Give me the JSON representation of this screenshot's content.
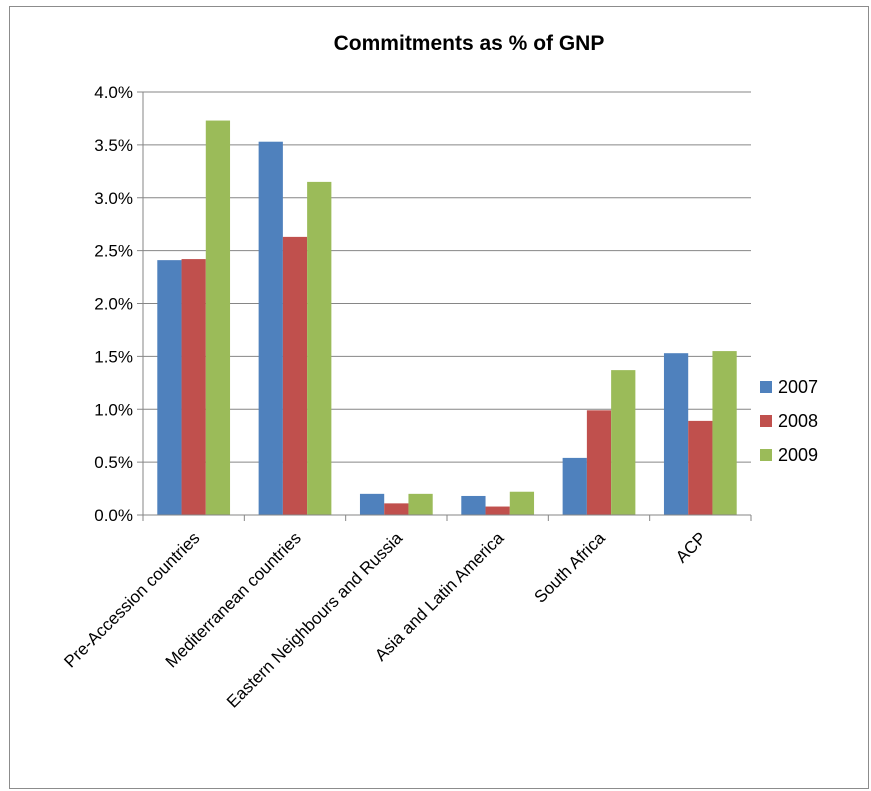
{
  "chart_data": {
    "type": "bar",
    "title": "Commitments as % of GNP",
    "xlabel": "",
    "ylabel": "",
    "categories": [
      "Pre-Accession countries",
      "Mediterranean countries",
      "Eastern Neighbours and Russia",
      "Asia and Latin America",
      "South Africa",
      "ACP"
    ],
    "series": [
      {
        "name": "2007",
        "color": "#4f81bd",
        "values": [
          2.41,
          3.53,
          0.2,
          0.18,
          0.54,
          1.53
        ]
      },
      {
        "name": "2008",
        "color": "#c0504d",
        "values": [
          2.42,
          2.63,
          0.11,
          0.08,
          0.99,
          0.89
        ]
      },
      {
        "name": "2009",
        "color": "#9bbb59",
        "values": [
          3.73,
          3.15,
          0.2,
          0.22,
          1.37,
          1.55
        ]
      }
    ],
    "ylim": [
      0,
      4.0
    ],
    "yticks": [
      0,
      0.5,
      1.0,
      1.5,
      2.0,
      2.5,
      3.0,
      3.5,
      4.0
    ],
    "ytick_labels": [
      "0.0%",
      "0.5%",
      "1.0%",
      "1.5%",
      "2.0%",
      "2.5%",
      "3.0%",
      "3.5%",
      "4.0%"
    ],
    "grid": true,
    "legend_position": "right"
  }
}
